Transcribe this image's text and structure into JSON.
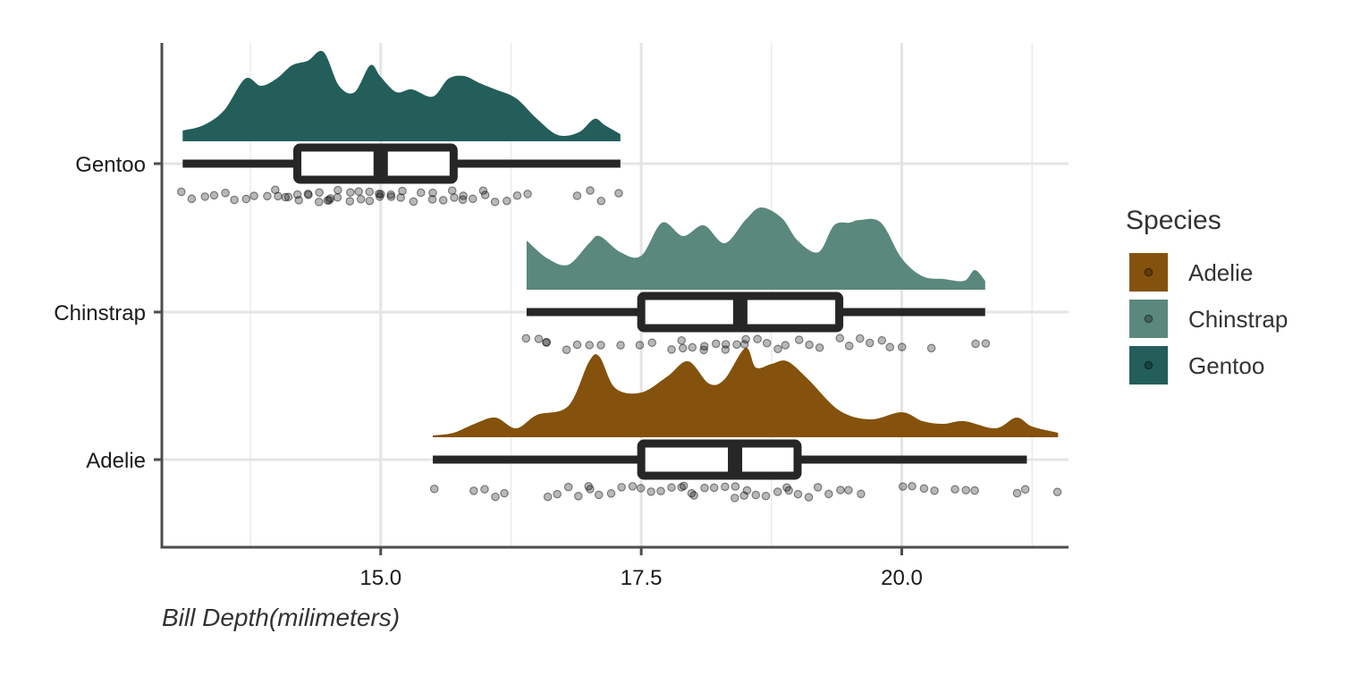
{
  "chart_data": {
    "type": "raincloud",
    "xlabel": "Bill Depth(milimeters)",
    "xlim": [
      12.9,
      21.6
    ],
    "x_ticks": [
      15.0,
      17.5,
      20.0
    ],
    "x_tick_labels": [
      "15.0",
      "17.5",
      "20.0"
    ],
    "x_minor_gridlines": [
      13.75,
      16.25,
      18.75,
      21.25
    ],
    "categories": [
      "Gentoo",
      "Chinstrap",
      "Adelie"
    ],
    "legend": {
      "title": "Species",
      "position": "right",
      "entries": [
        {
          "label": "Adelie",
          "color": "#84520C"
        },
        {
          "label": "Chinstrap",
          "color": "#5A887C"
        },
        {
          "label": "Gentoo",
          "color": "#235E5A"
        }
      ]
    },
    "series": [
      {
        "name": "Gentoo",
        "color": "#235E5A",
        "box": {
          "min": 13.1,
          "q1": 14.2,
          "median": 15.0,
          "q3": 15.7,
          "max": 17.3
        },
        "density_x": [
          13.1,
          13.3,
          13.5,
          13.7,
          13.85,
          14.0,
          14.15,
          14.3,
          14.45,
          14.6,
          14.75,
          14.9,
          15.0,
          15.15,
          15.3,
          15.5,
          15.65,
          15.8,
          15.95,
          16.1,
          16.3,
          16.5,
          16.7,
          16.9,
          17.05,
          17.15,
          17.3
        ],
        "density_y": [
          0.12,
          0.18,
          0.35,
          0.7,
          0.62,
          0.7,
          0.85,
          0.9,
          1.0,
          0.62,
          0.55,
          0.85,
          0.72,
          0.55,
          0.58,
          0.5,
          0.7,
          0.73,
          0.65,
          0.58,
          0.48,
          0.25,
          0.07,
          0.1,
          0.25,
          0.18,
          0.08
        ],
        "points": [
          13.1,
          13.2,
          13.3,
          13.4,
          13.5,
          13.6,
          13.7,
          13.8,
          13.9,
          14.0,
          14.0,
          14.1,
          14.1,
          14.2,
          14.2,
          14.3,
          14.3,
          14.4,
          14.4,
          14.5,
          14.5,
          14.5,
          14.6,
          14.6,
          14.7,
          14.7,
          14.8,
          14.8,
          14.9,
          14.9,
          15.0,
          15.0,
          15.0,
          15.1,
          15.1,
          15.2,
          15.2,
          15.3,
          15.4,
          15.5,
          15.5,
          15.6,
          15.7,
          15.7,
          15.8,
          15.8,
          15.9,
          16.0,
          16.0,
          16.1,
          16.2,
          16.3,
          16.4,
          16.9,
          17.0,
          17.1,
          17.3
        ]
      },
      {
        "name": "Chinstrap",
        "color": "#5A887C",
        "box": {
          "min": 16.4,
          "q1": 17.5,
          "median": 18.45,
          "q3": 19.4,
          "max": 20.8
        },
        "density_x": [
          16.4,
          16.6,
          16.8,
          17.0,
          17.1,
          17.3,
          17.5,
          17.7,
          17.9,
          18.1,
          18.3,
          18.5,
          18.65,
          18.85,
          19.0,
          19.2,
          19.35,
          19.5,
          19.6,
          19.8,
          20.0,
          20.2,
          20.4,
          20.6,
          20.7,
          20.8
        ],
        "density_y": [
          0.55,
          0.35,
          0.28,
          0.52,
          0.6,
          0.42,
          0.38,
          0.75,
          0.6,
          0.72,
          0.52,
          0.78,
          0.92,
          0.8,
          0.55,
          0.42,
          0.72,
          0.75,
          0.78,
          0.75,
          0.35,
          0.15,
          0.12,
          0.1,
          0.22,
          0.1
        ],
        "points": [
          16.4,
          16.5,
          16.6,
          16.6,
          16.8,
          16.9,
          17.0,
          17.1,
          17.3,
          17.5,
          17.6,
          17.8,
          17.9,
          17.9,
          18.0,
          18.1,
          18.1,
          18.2,
          18.3,
          18.3,
          18.4,
          18.5,
          18.5,
          18.6,
          18.7,
          18.8,
          18.9,
          19.0,
          19.1,
          19.2,
          19.4,
          19.5,
          19.6,
          19.7,
          19.8,
          19.9,
          20.0,
          20.3,
          20.7,
          20.8
        ]
      },
      {
        "name": "Adelie",
        "color": "#84520C",
        "box": {
          "min": 15.5,
          "q1": 17.5,
          "median": 18.4,
          "q3": 19.0,
          "max": 21.2
        },
        "density_x": [
          15.5,
          15.7,
          15.9,
          16.1,
          16.3,
          16.5,
          16.8,
          17.0,
          17.1,
          17.25,
          17.5,
          17.75,
          17.95,
          18.15,
          18.3,
          18.5,
          18.6,
          18.75,
          18.9,
          19.1,
          19.4,
          19.7,
          20.0,
          20.2,
          20.4,
          20.6,
          20.9,
          21.1,
          21.25,
          21.5
        ],
        "density_y": [
          0.02,
          0.05,
          0.15,
          0.22,
          0.1,
          0.25,
          0.35,
          0.85,
          0.9,
          0.55,
          0.5,
          0.68,
          0.85,
          0.6,
          0.65,
          1.0,
          0.78,
          0.82,
          0.85,
          0.65,
          0.3,
          0.2,
          0.28,
          0.18,
          0.15,
          0.18,
          0.1,
          0.22,
          0.12,
          0.05
        ],
        "points": [
          15.5,
          15.9,
          16.0,
          16.1,
          16.2,
          16.6,
          16.7,
          16.8,
          16.9,
          17.0,
          17.0,
          17.1,
          17.2,
          17.3,
          17.4,
          17.5,
          17.6,
          17.7,
          17.8,
          17.9,
          17.9,
          18.0,
          18.0,
          18.1,
          18.2,
          18.3,
          18.4,
          18.4,
          18.5,
          18.5,
          18.6,
          18.7,
          18.8,
          18.9,
          18.9,
          19.0,
          19.1,
          19.2,
          19.3,
          19.4,
          19.5,
          19.6,
          20.0,
          20.1,
          20.2,
          20.3,
          20.5,
          20.6,
          20.7,
          21.1,
          21.2,
          21.5
        ]
      }
    ]
  }
}
